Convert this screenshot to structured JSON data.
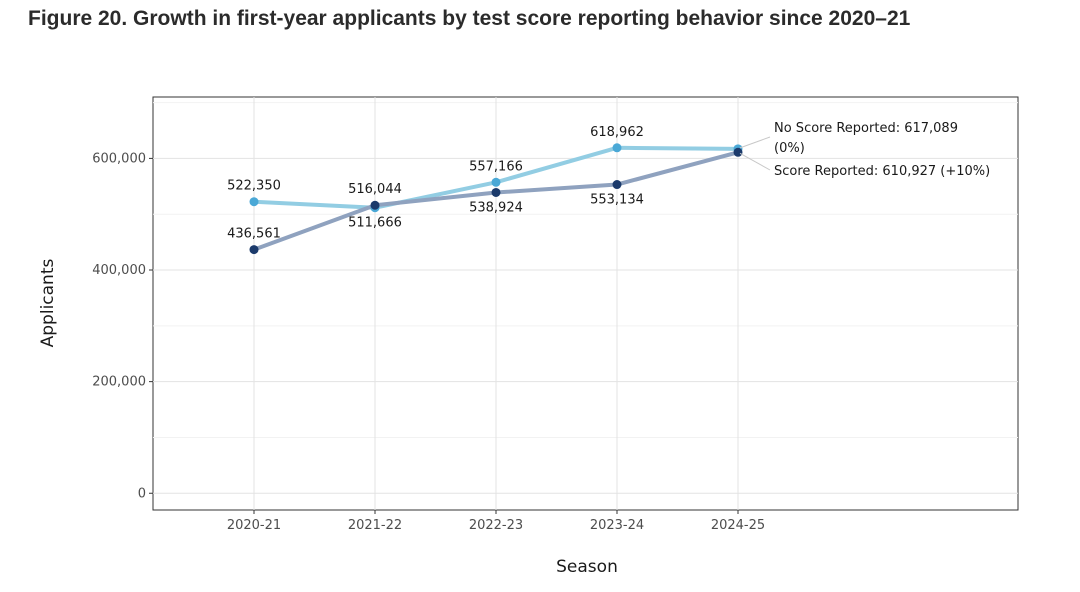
{
  "figure": {
    "title": "Figure 20. Growth in first-year applicants by test score reporting behavior since 2020–21"
  },
  "chart_data": {
    "type": "line",
    "title": "",
    "xlabel": "Season",
    "ylabel": "Applicants",
    "categories": [
      "2020-21",
      "2021-22",
      "2022-23",
      "2023-24",
      "2024-25"
    ],
    "ylim": [
      -30000,
      710000
    ],
    "yticks": [
      0,
      200000,
      400000,
      600000
    ],
    "ytick_labels": [
      "0",
      "200,000",
      "400,000",
      "600,000"
    ],
    "grid": true,
    "legend": "none (direct labels at line ends)",
    "series": [
      {
        "name": "No Score Reported",
        "values": [
          522350,
          511666,
          557166,
          618962,
          617089
        ],
        "labels": [
          "522,350",
          "511,666",
          "557,166",
          "618,962",
          ""
        ],
        "line_color": "#92cde3",
        "point_color": "#4aa8d6"
      },
      {
        "name": "Score Reported",
        "values": [
          436561,
          516044,
          538924,
          553134,
          610927
        ],
        "labels": [
          "436,561",
          "516,044",
          "538,924",
          "553,134",
          ""
        ],
        "line_color": "#8fa2bf",
        "point_color": "#1b3a6b"
      }
    ],
    "end_annotations": [
      {
        "lines": [
          "No Score Reported: 617,089",
          "(0%)"
        ]
      },
      {
        "lines": [
          "Score Reported: 610,927 (+10%)"
        ]
      }
    ]
  }
}
